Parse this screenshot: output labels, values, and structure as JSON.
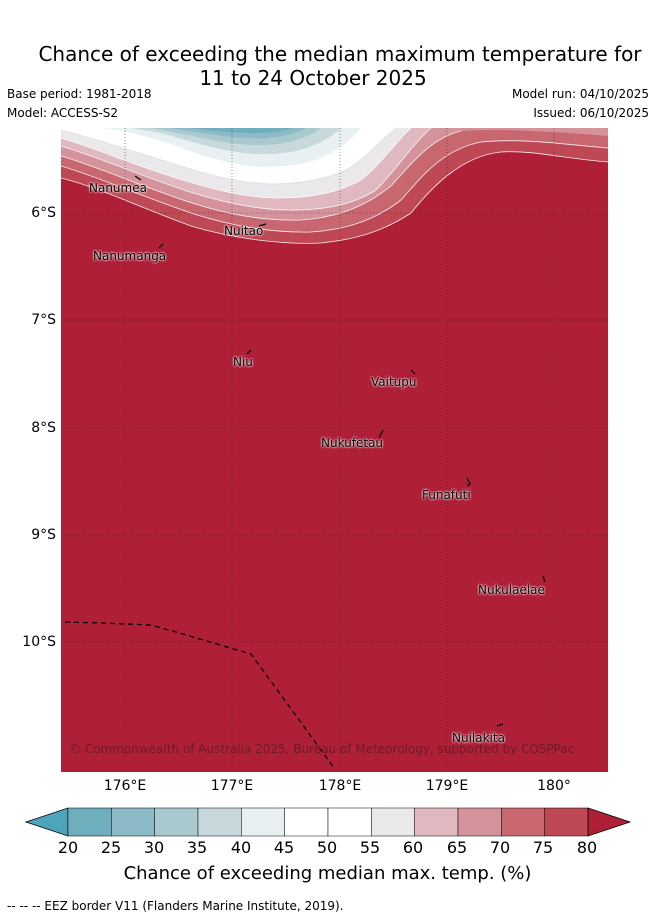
{
  "title": {
    "line1": "Chance of exceeding the median maximum temperature for",
    "line2": "11 to 24 October 2025"
  },
  "meta": {
    "base_period": "Base period: 1981-2018",
    "model": "Model: ACCESS-S2",
    "model_run": "Model run: 04/10/2025",
    "issued": "Issued: 06/10/2025"
  },
  "map": {
    "x_ticks": [
      "176°E",
      "177°E",
      "178°E",
      "179°E",
      "180°"
    ],
    "y_ticks": [
      "6°S",
      "7°S",
      "8°S",
      "9°S",
      "10°S"
    ],
    "islands": [
      {
        "name": "Nanumea"
      },
      {
        "name": "Nuitao"
      },
      {
        "name": "Nanumanga"
      },
      {
        "name": "Niu"
      },
      {
        "name": "Vaitupu"
      },
      {
        "name": "Nukufetau"
      },
      {
        "name": "Funafuti"
      },
      {
        "name": "Nukulaelae"
      },
      {
        "name": "Nuilakita"
      }
    ],
    "copyright": "© Commonwealth of Australia 2025, Bureau of Meteorology, supported by COSPPac"
  },
  "colorbar": {
    "ticks": [
      "20",
      "25",
      "30",
      "35",
      "40",
      "45",
      "50",
      "55",
      "60",
      "65",
      "70",
      "75",
      "80"
    ],
    "colors": [
      "#4ea5b9",
      "#6faebd",
      "#8cbac6",
      "#aac9cf",
      "#c8d9de",
      "#e9f0f2",
      "#ffffff",
      "#ffffff",
      "#eae8ea",
      "#e0b8bf",
      "#d4929b",
      "#c8676f",
      "#be4856",
      "#b01f38"
    ],
    "label": "Chance of exceeding median max. temp. (%)"
  },
  "footer": "--  --  -- EEZ border V11 (Flanders Marine Institute, 2019)."
}
